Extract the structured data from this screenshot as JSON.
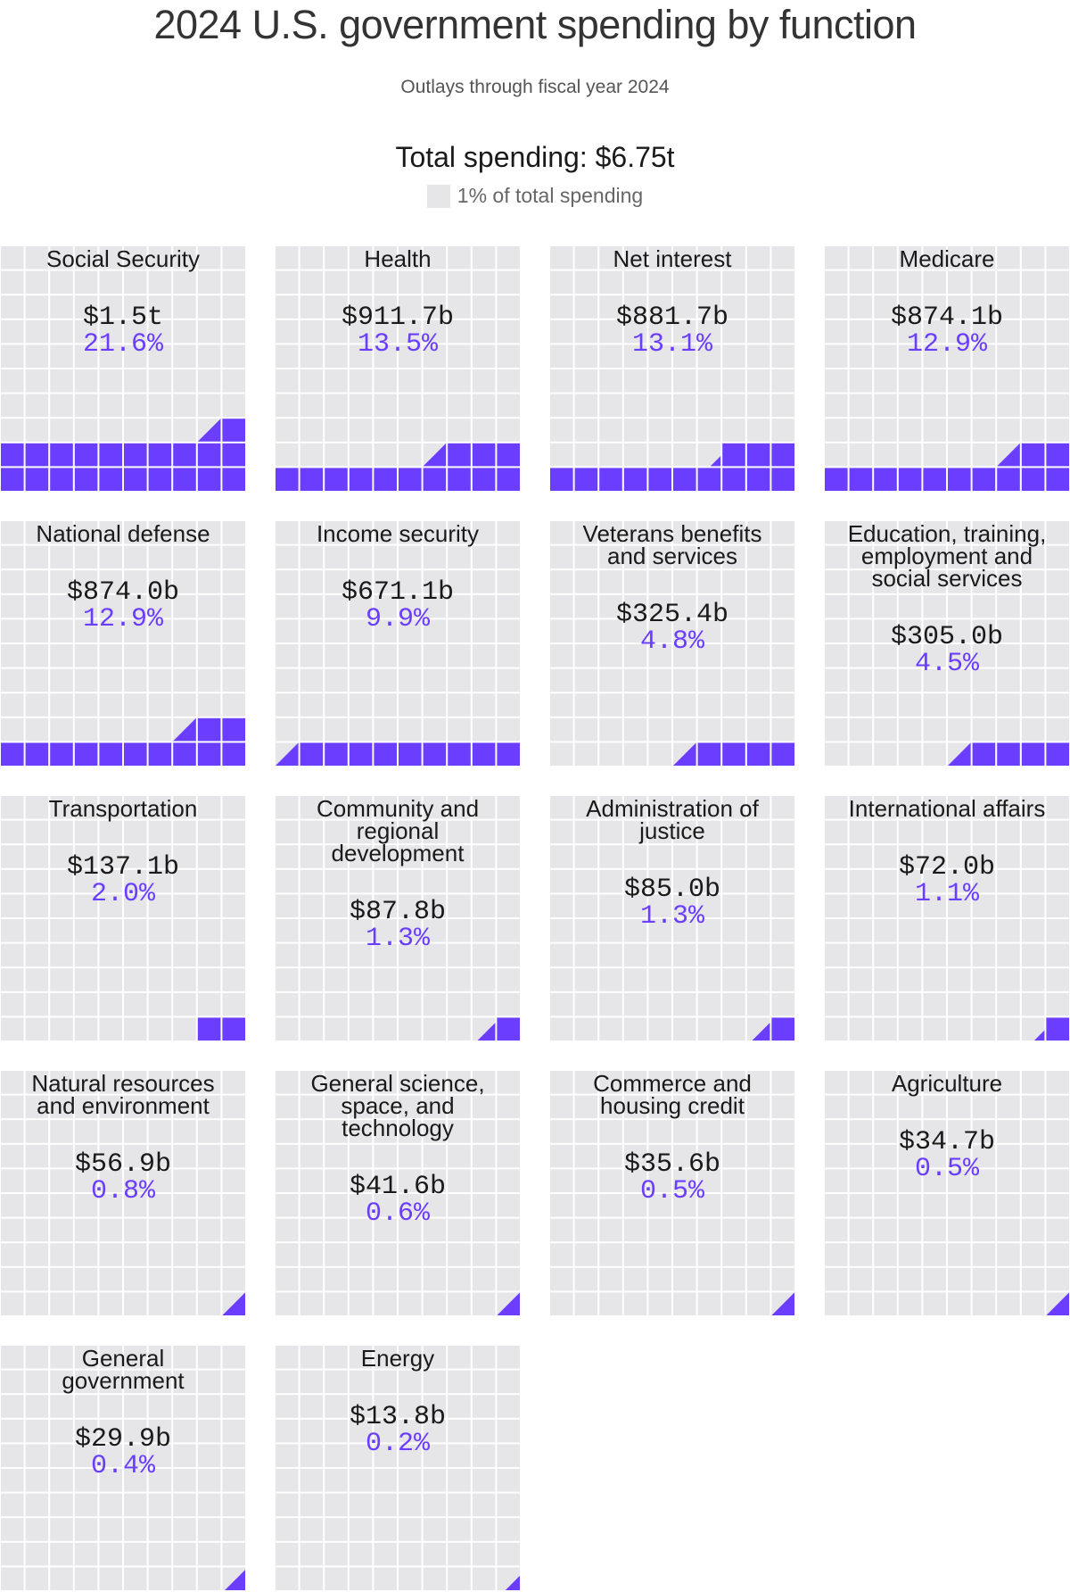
{
  "header": {
    "title": "2024 U.S. government spending by function",
    "subtitle": "Outlays through fiscal year 2024",
    "total": "Total spending: $6.75t",
    "legend_label": "1% of total spending"
  },
  "colors": {
    "fill": "#6a3dff",
    "empty": "#e6e6e8",
    "grid": "#ffffff"
  },
  "chart_data": {
    "type": "waffle",
    "title": "2024 U.S. government spending by function",
    "subtitle": "Outlays through fiscal year 2024",
    "total": "$6.75t",
    "unit_label": "1% of total spending",
    "grid_size": [
      10,
      10
    ],
    "categories": [
      {
        "name": [
          "Social Security"
        ],
        "value": "$1.5t",
        "pct_label": "21.6%",
        "pct": 21.6
      },
      {
        "name": [
          "Health"
        ],
        "value": "$911.7b",
        "pct_label": "13.5%",
        "pct": 13.5
      },
      {
        "name": [
          "Net interest"
        ],
        "value": "$881.7b",
        "pct_label": "13.1%",
        "pct": 13.1
      },
      {
        "name": [
          "Medicare"
        ],
        "value": "$874.1b",
        "pct_label": "12.9%",
        "pct": 12.9
      },
      {
        "name": [
          "National defense"
        ],
        "value": "$874.0b",
        "pct_label": "12.9%",
        "pct": 12.9
      },
      {
        "name": [
          "Income security"
        ],
        "value": "$671.1b",
        "pct_label": "9.9%",
        "pct": 9.9
      },
      {
        "name": [
          "Veterans benefits",
          "and services"
        ],
        "value": "$325.4b",
        "pct_label": "4.8%",
        "pct": 4.8
      },
      {
        "name": [
          "Education, training,",
          "employment and",
          "social services"
        ],
        "value": "$305.0b",
        "pct_label": "4.5%",
        "pct": 4.5
      },
      {
        "name": [
          "Transportation"
        ],
        "value": "$137.1b",
        "pct_label": "2.0%",
        "pct": 2.0
      },
      {
        "name": [
          "Community and",
          "regional",
          "development"
        ],
        "value": "$87.8b",
        "pct_label": "1.3%",
        "pct": 1.3
      },
      {
        "name": [
          "Administration of",
          "justice"
        ],
        "value": "$85.0b",
        "pct_label": "1.3%",
        "pct": 1.3
      },
      {
        "name": [
          "International affairs"
        ],
        "value": "$72.0b",
        "pct_label": "1.1%",
        "pct": 1.1
      },
      {
        "name": [
          "Natural resources",
          "and environment"
        ],
        "value": "$56.9b",
        "pct_label": "0.8%",
        "pct": 0.8
      },
      {
        "name": [
          "General science,",
          "space, and",
          "technology"
        ],
        "value": "$41.6b",
        "pct_label": "0.6%",
        "pct": 0.6
      },
      {
        "name": [
          "Commerce and",
          "housing credit"
        ],
        "value": "$35.6b",
        "pct_label": "0.5%",
        "pct": 0.5
      },
      {
        "name": [
          "Agriculture"
        ],
        "value": "$34.7b",
        "pct_label": "0.5%",
        "pct": 0.5
      },
      {
        "name": [
          "General",
          "government"
        ],
        "value": "$29.9b",
        "pct_label": "0.4%",
        "pct": 0.4
      },
      {
        "name": [
          "Energy"
        ],
        "value": "$13.8b",
        "pct_label": "0.2%",
        "pct": 0.2
      }
    ]
  }
}
